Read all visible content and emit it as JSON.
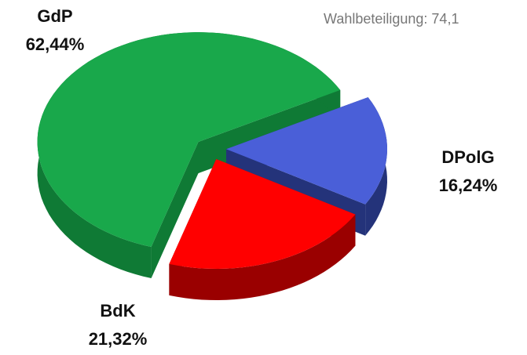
{
  "chart_data": {
    "type": "pie3d",
    "annotation": "Wahlbeteiligung: 74,1",
    "categories": [
      "GdP",
      "DPolG",
      "BdK"
    ],
    "values": [
      62.44,
      16.24,
      21.32
    ],
    "value_labels": [
      "62,44%",
      "16,24%",
      "21,32%"
    ],
    "colors": [
      "#19a84b",
      "#4a5fd8",
      "#ff0000"
    ],
    "side_colors": [
      "#0f7a35",
      "#24337a",
      "#9a0000"
    ]
  }
}
